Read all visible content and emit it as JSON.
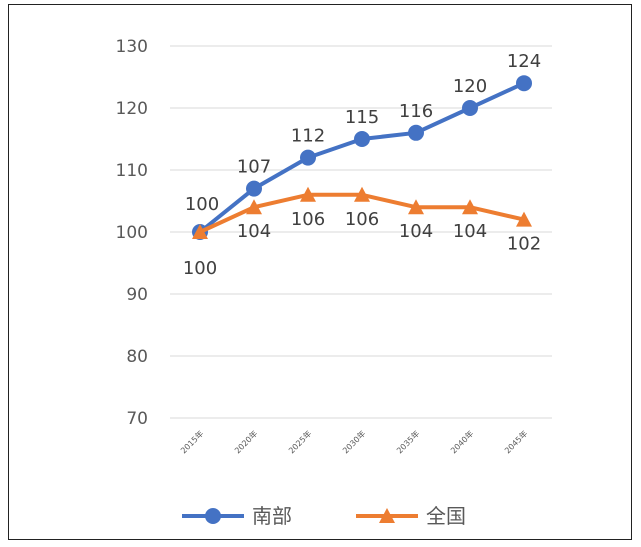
{
  "chart_data": {
    "type": "line",
    "categories": [
      "2015年",
      "2020年",
      "2025年",
      "2030年",
      "2035年",
      "2040年",
      "2045年"
    ],
    "series": [
      {
        "name": "南部",
        "values": [
          100,
          107,
          112,
          115,
          116,
          120,
          124
        ],
        "color": "#4472c4",
        "marker": "circle"
      },
      {
        "name": "全国",
        "values": [
          100,
          104,
          106,
          106,
          104,
          104,
          102
        ],
        "color": "#ed7d31",
        "marker": "triangle"
      }
    ],
    "ylim": [
      70,
      130
    ],
    "yticks": [
      70,
      80,
      90,
      100,
      110,
      120,
      130
    ],
    "grid": true,
    "legend": "bottom",
    "title": "",
    "xlabel": "",
    "ylabel": ""
  }
}
